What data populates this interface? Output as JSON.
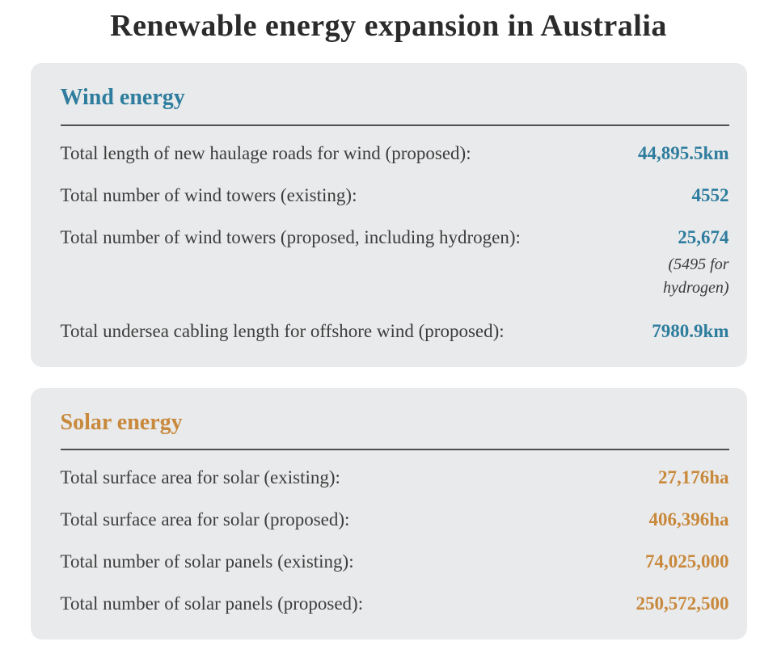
{
  "page": {
    "title": "Renewable energy expansion in Australia"
  },
  "colors": {
    "wind_accent": "#2e7d9e",
    "solar_accent": "#c8893c",
    "card_background": "#e9eaeb",
    "label_text": "#3d3d3d",
    "title_text": "#2b2b2b",
    "divider": "#4f4f4f"
  },
  "sections": [
    {
      "id": "wind",
      "title": "Wind energy",
      "accent_color": "#2e7d9e",
      "rows": [
        {
          "label": "Total length of new haulage roads for wind (proposed):",
          "value": "44,895.5km",
          "note": ""
        },
        {
          "label": "Total number of wind towers (existing):",
          "value": "4552",
          "note": ""
        },
        {
          "label": "Total number of wind towers (proposed, including hydrogen):",
          "value": "25,674",
          "note": "(5495 for hydrogen)"
        },
        {
          "label": "Total undersea cabling length for offshore wind (proposed):",
          "value": "7980.9km",
          "note": ""
        }
      ]
    },
    {
      "id": "solar",
      "title": "Solar energy",
      "accent_color": "#c8893c",
      "rows": [
        {
          "label": "Total surface area for solar (existing):",
          "value": "27,176ha",
          "note": ""
        },
        {
          "label": "Total surface area for solar (proposed):",
          "value": "406,396ha",
          "note": ""
        },
        {
          "label": "Total number of solar panels (existing):",
          "value": "74,025,000",
          "note": ""
        },
        {
          "label": "Total number of solar panels (proposed):",
          "value": "250,572,500",
          "note": ""
        }
      ]
    }
  ]
}
